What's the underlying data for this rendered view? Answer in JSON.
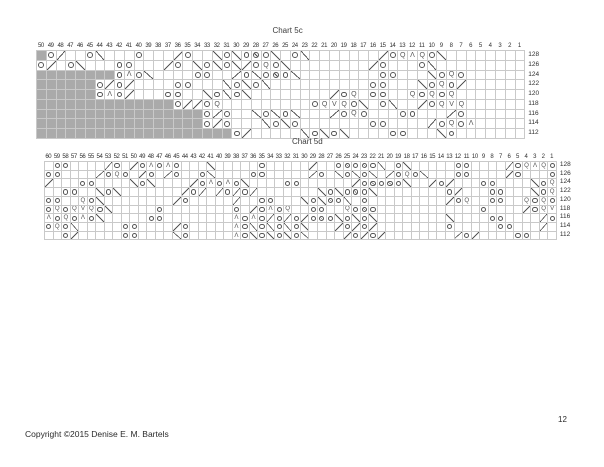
{
  "page": {
    "copyright": "Copyright ©2015 Denise E. M. Bartels",
    "page_number": "12"
  },
  "colors": {
    "background": "#ffffff",
    "grid_line": "#c9c9c9",
    "symbol": "#555555",
    "no_stitch_fill": "#aaaaaa",
    "text": "#2f2f2f"
  },
  "symbols_legend": {
    "O": "yarn-over-circle",
    "/": "right-leaning-decrease-k2tog",
    "b": "left-leaning-decrease-ssk",
    "A": "central-double-decrease",
    "V": "slip-stitch",
    "Q": "twisted-stitch",
    "X": "yarn-over-with-slash",
    "#": "no-stitch-gray",
    ".": "knit-empty-cell"
  },
  "charts": [
    {
      "title": "Chart 5c",
      "columns": [
        50,
        49,
        48,
        47,
        46,
        45,
        44,
        43,
        42,
        41,
        40,
        39,
        38,
        37,
        36,
        35,
        34,
        33,
        32,
        31,
        30,
        29,
        28,
        27,
        26,
        25,
        24,
        23,
        22,
        21,
        20,
        19,
        18,
        17,
        16,
        15,
        14,
        13,
        12,
        11,
        10,
        9,
        8,
        7,
        6,
        5,
        4,
        3,
        2,
        1
      ],
      "rows": [
        {
          "label": "128",
          "cells": "#Ob..O/...O...bO../O/OXO/.O/.......bOQAQO/........"
        },
        {
          "label": "126",
          "cells": "Ob.O/...OO...bO./O/O/bOQO/........bO...O/........."
        },
        {
          "label": "124",
          "cells": "########OAO/....OO..bO/OXO/........OO.../OQO......"
        },
        {
          "label": "122",
          "cells": "######ObOb....OO.../O/O/..........OO.../OQOb......"
        },
        {
          "label": "120",
          "cells": "######OAOb...OO../O/O/........bOQ.OO..QOQOQ......."
        },
        {
          "label": "118",
          "cells": "##############ObbOQ.........OQVQO/.O/..bOQVQ......"
        },
        {
          "label": "116",
          "cells": "#################ObO../O/O/...bOQO...OO...bO......"
        },
        {
          "label": "114",
          "cells": "#################ObO.../O/O.......OO....bOQOA....."
        },
        {
          "label": "112",
          "cells": "####################Ob...../O/O/....OO.../O......."
        }
      ]
    },
    {
      "title": "Chart 5d",
      "columns": [
        60,
        59,
        58,
        57,
        56,
        55,
        54,
        53,
        52,
        51,
        50,
        49,
        48,
        47,
        46,
        45,
        44,
        43,
        42,
        41,
        40,
        39,
        38,
        37,
        36,
        35,
        34,
        33,
        32,
        31,
        30,
        29,
        28,
        27,
        26,
        25,
        24,
        23,
        22,
        21,
        20,
        19,
        18,
        17,
        16,
        15,
        14,
        13,
        12,
        11,
        10,
        9,
        8,
        7,
        6,
        5,
        4,
        3,
        2,
        1
      ],
      "rows": [
        {
          "label": "128",
          "cells": ".OO....bO.bOAOAO.../.....O.....b..OXOXO/.O/.....OO....bOQAQO"
        },
        {
          "label": "126",
          "cells": "OO....bOQO.bO.bO..O/....OO.....bO./O/O/.bOQO/...OO....bO...O"
        },
        {
          "label": "124",
          "cells": "b...OO..../O/....bOAOAO/....OO......bOXOXO/..bOb...OO..../OQ"
        },
        {
          "label": "122",
          "cells": "..OO../O/.......bOb.bObOb......./O/OXO/........Ob...OO.../OQ"
        },
        {
          "label": "120",
          "cells": "OO..QO/........bO.....b..OO.../O/XO/.O.........bOQ..OO..QOQO"
        },
        {
          "label": "118",
          "cells": "OQOQVQO/.....O........O.bOAOQ..OO..QOXO............O....bOQV"
        },
        {
          "label": "116",
          "cells": "AOQOAO/.....OO........AOAObObObOXO/O/O/......../....OO....bO"
        },
        {
          "label": "114",
          "cells": "OQO/.....OO....bO.....AO/O/O/O/...bObOb........O.....OO...b."
        },
        {
          "label": "112",
          "cells": "..Ob.....OO..../O.....AO/O/O/O/....bObOb........bOb....OO..."
        }
      ]
    }
  ]
}
